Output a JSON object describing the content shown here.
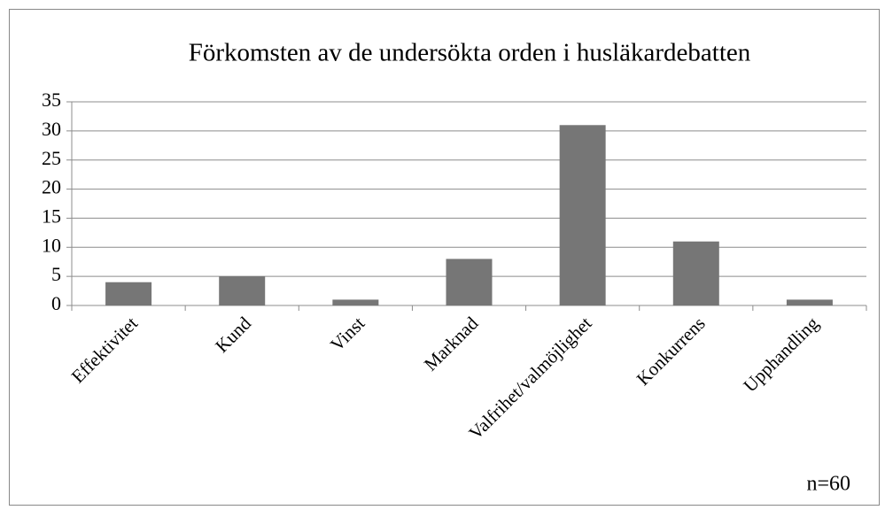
{
  "chart_data": {
    "type": "bar",
    "title": "Förkomsten av de undersökta orden i husläkardebatten",
    "categories": [
      "Effektivitet",
      "Kund",
      "Vinst",
      "Marknad",
      "Valfrihet/valmöjlighet",
      "Konkurrens",
      "Upphandling"
    ],
    "values": [
      4,
      5,
      1,
      8,
      31,
      11,
      1
    ],
    "color": "#767676",
    "ylim": [
      0,
      35
    ],
    "yticks": [
      0,
      5,
      10,
      15,
      20,
      25,
      30,
      35
    ],
    "grid": true,
    "annotation": "n=60"
  }
}
